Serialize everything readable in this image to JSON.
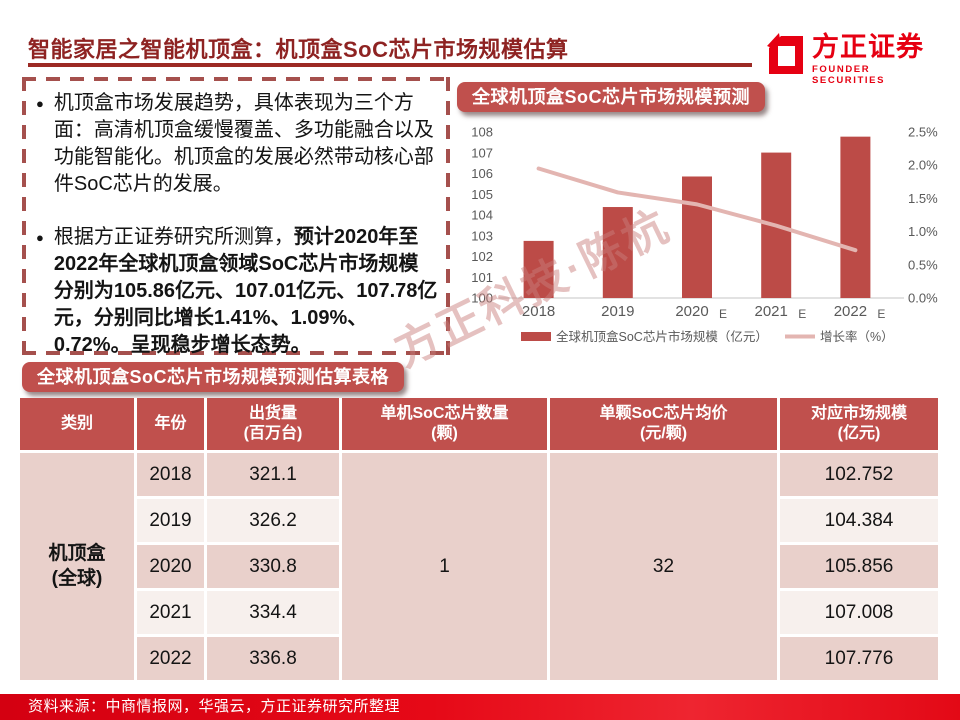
{
  "header": {
    "title": "智能家居之智能机顶盒：机顶盒SoC芯片市场规模估算",
    "logo_cn": "方正证券",
    "logo_en": "FOUNDER SECURITIES"
  },
  "bullets": {
    "b1": "机顶盒市场发展趋势，具体表现为三个方面：高清机顶盒缓慢覆盖、多功能融合以及功能智能化。机顶盒的发展必然带动核心部件SoC芯片的发展。",
    "b2_prefix": "根据方正证券研究所测算，",
    "b2_bold": "预计2020年至2022年全球机顶盒领域SoC芯片市场规模分别为105.86亿元、107.01亿元、107.78亿元，分别同比增长1.41%、1.09%、0.72%。呈现稳步增长态势。"
  },
  "chart_data": {
    "type": "bar",
    "title": "全球机顶盒SoC芯片市场规模预测",
    "categories": [
      "2018",
      "2019",
      "2020",
      "2021",
      "2022"
    ],
    "estimated_categories": [
      "2020",
      "2021",
      "2022"
    ],
    "series": [
      {
        "name": "全球机顶盒SoC芯片市场规模（亿元）",
        "type": "bar",
        "axis": "left",
        "color": "#bc4b47",
        "values": [
          102.752,
          104.384,
          105.856,
          107.008,
          107.776
        ]
      },
      {
        "name": "增长率（%）",
        "type": "line",
        "axis": "right",
        "color": "#e3b5b1",
        "values": [
          1.95,
          1.59,
          1.41,
          1.09,
          0.72
        ]
      }
    ],
    "left_axis": {
      "min": 100,
      "max": 108,
      "step": 1
    },
    "right_axis": {
      "min": 0,
      "max": 2.5,
      "step": 0.5,
      "suffix": "%"
    },
    "grid": false,
    "legend_position": "bottom",
    "axis_text_color": "#595959"
  },
  "table_section": {
    "badge": "全球机顶盒SoC芯片市场规模预测估算表格",
    "headers": [
      {
        "l1": "类别",
        "l2": ""
      },
      {
        "l1": "年份",
        "l2": ""
      },
      {
        "l1": "出货量",
        "l2": "(百万台)"
      },
      {
        "l1": "单机SoC芯片数量",
        "l2": "(颗)"
      },
      {
        "l1": "单颗SoC芯片均价",
        "l2": "(元/颗)"
      },
      {
        "l1": "对应市场规模",
        "l2": "(亿元)"
      }
    ],
    "category_line1": "机顶盒",
    "category_line2": "(全球)",
    "chips_per_unit": "1",
    "chip_price": "32",
    "rows": [
      {
        "year": "2018",
        "shipments": "321.1",
        "market": "102.752"
      },
      {
        "year": "2019",
        "shipments": "326.2",
        "market": "104.384"
      },
      {
        "year": "2020",
        "shipments": "330.8",
        "market": "105.856"
      },
      {
        "year": "2021",
        "shipments": "334.4",
        "market": "107.008"
      },
      {
        "year": "2022",
        "shipments": "336.8",
        "market": "107.776"
      }
    ]
  },
  "watermark": "方正科技·陈杭",
  "footer": {
    "source": "资料来源：中商情报网，华强云，方正证券研究所整理"
  },
  "colors": {
    "brand_red": "#e60012",
    "badge_red": "#c0504d",
    "bar_red": "#bc4b47",
    "line_pink": "#e3b5b1",
    "title_maroon": "#8e2322",
    "row_dark": "#e9d0cb",
    "row_light": "#f7f0ed"
  }
}
